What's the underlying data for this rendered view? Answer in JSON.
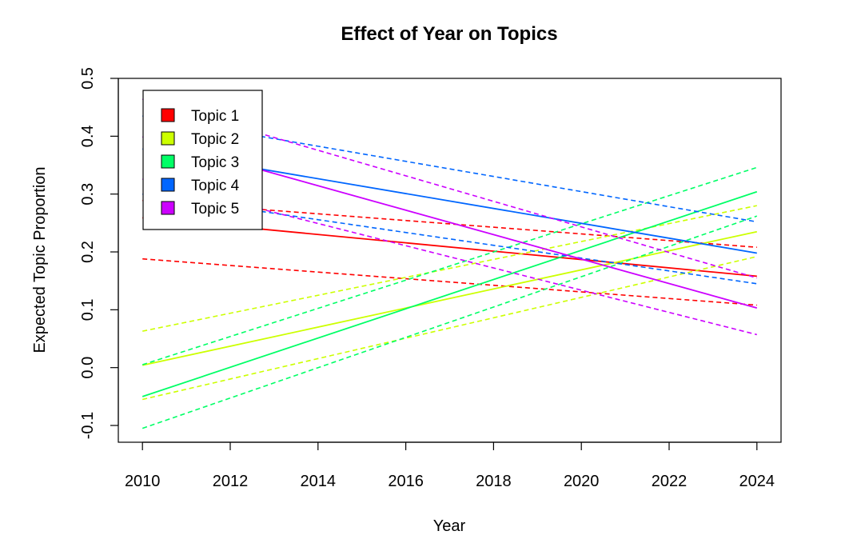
{
  "chart_data": {
    "type": "line",
    "title": "Effect of Year on Topics",
    "xlabel": "Year",
    "ylabel": "Expected Topic Proportion",
    "xlim": [
      2009.45,
      2024.55
    ],
    "ylim": [
      -0.129,
      0.5
    ],
    "x_ticks": [
      2010,
      2012,
      2014,
      2016,
      2018,
      2020,
      2022,
      2024
    ],
    "y_ticks": [
      -0.1,
      0.0,
      0.1,
      0.2,
      0.3,
      0.4,
      0.5
    ],
    "y_tick_labels": [
      "-0.1",
      "0.0",
      "0.1",
      "0.2",
      "0.3",
      "0.4",
      "0.5"
    ],
    "legend_position": "top-left",
    "grid": false,
    "series": [
      {
        "name": "Topic 1",
        "color": "#ff0000",
        "x": [
          2010,
          2024
        ],
        "mean": [
          0.259,
          0.158
        ],
        "lower": [
          0.188,
          0.108
        ],
        "upper": [
          0.289,
          0.208
        ]
      },
      {
        "name": "Topic 2",
        "color": "#ccff00",
        "x": [
          2010,
          2024
        ],
        "mean": [
          0.004,
          0.235
        ],
        "lower": [
          -0.055,
          0.192
        ],
        "upper": [
          0.063,
          0.28
        ]
      },
      {
        "name": "Topic 3",
        "color": "#00ff66",
        "x": [
          2010,
          2024
        ],
        "mean": [
          -0.05,
          0.304
        ],
        "lower": [
          -0.105,
          0.262
        ],
        "upper": [
          0.005,
          0.346
        ]
      },
      {
        "name": "Topic 4",
        "color": "#0066ff",
        "x": [
          2010,
          2024
        ],
        "mean": [
          0.378,
          0.198
        ],
        "lower": [
          0.3,
          0.145
        ],
        "upper": [
          0.435,
          0.252
        ]
      },
      {
        "name": "Topic 5",
        "color": "#cc00ff",
        "x": [
          2010,
          2024
        ],
        "mean": [
          0.399,
          0.103
        ],
        "lower": [
          0.326,
          0.057
        ],
        "upper": [
          0.464,
          0.155
        ]
      }
    ]
  }
}
